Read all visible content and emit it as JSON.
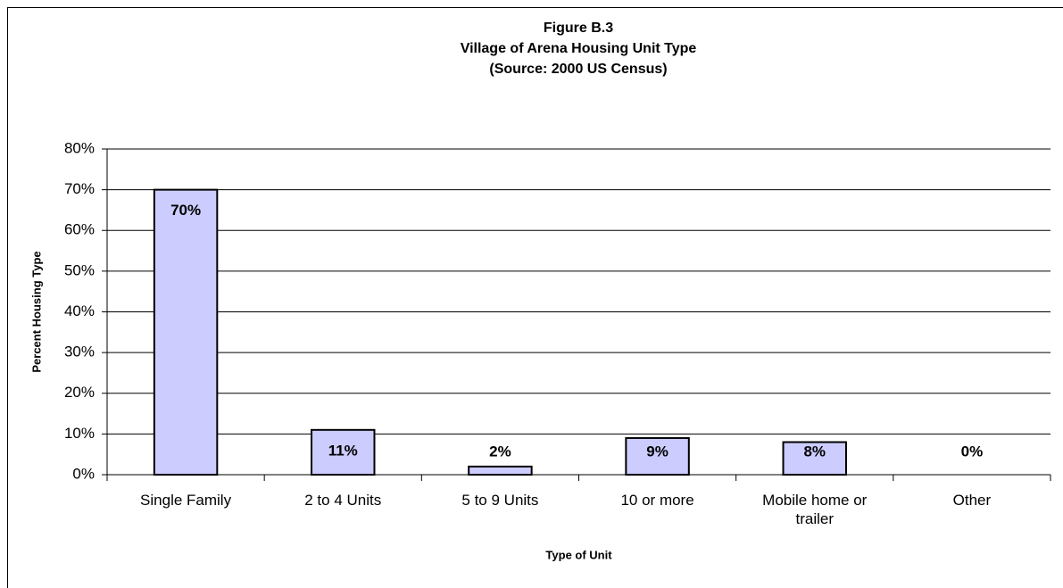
{
  "chart_data": {
    "type": "bar",
    "title": [
      "Figure B.3",
      "Village of Arena Housing Unit Type",
      "(Source:  2000 US Census)"
    ],
    "x_label": "Type of Unit",
    "y_label": "Percent Housing Type",
    "categories": [
      "Single Family",
      "2 to 4 Units",
      "5 to 9 Units",
      "10 or more",
      "Mobile home or trailer",
      "Other"
    ],
    "values": [
      70,
      11,
      2,
      9,
      8,
      0
    ],
    "value_labels": [
      "70%",
      "11%",
      "2%",
      "9%",
      "8%",
      "0%"
    ],
    "color": "#ccccff",
    "ylim": [
      0,
      80
    ],
    "yticks": [
      {
        "value": 0,
        "label": "0%"
      },
      {
        "value": 10,
        "label": "10%"
      },
      {
        "value": 20,
        "label": "20%"
      },
      {
        "value": 30,
        "label": "30%"
      },
      {
        "value": 40,
        "label": "40%"
      },
      {
        "value": 50,
        "label": "50%"
      },
      {
        "value": 60,
        "label": "60%"
      },
      {
        "value": 70,
        "label": "70%"
      },
      {
        "value": 80,
        "label": "80%"
      }
    ],
    "grid": true
  }
}
